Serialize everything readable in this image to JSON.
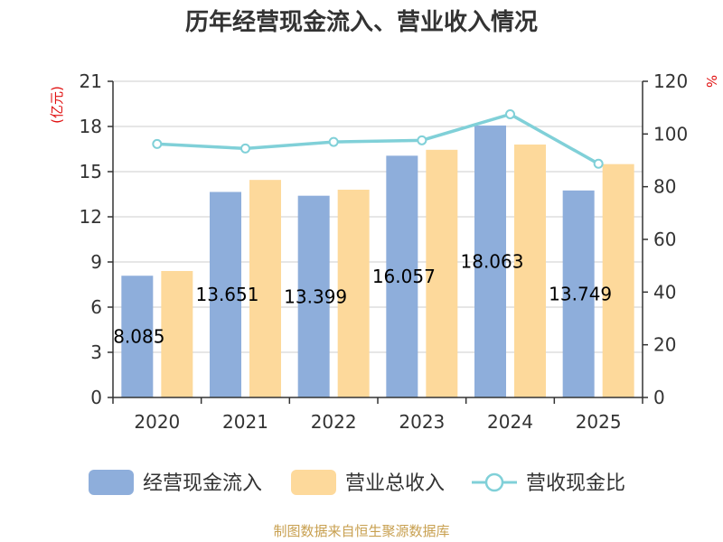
{
  "chart_data": {
    "type": "bar",
    "title": "历年经营现金流入、营业收入情况",
    "categories": [
      "2020",
      "2021",
      "2022",
      "2023",
      "2024",
      "2025"
    ],
    "series": [
      {
        "name": "经营现金流入",
        "type": "bar",
        "axis": "left",
        "color": "#8eaedb",
        "values": [
          8.085,
          13.651,
          13.399,
          16.057,
          18.063,
          13.749
        ],
        "labels": [
          "8.085",
          "13.651",
          "13.399",
          "16.057",
          "18.063",
          "13.749"
        ]
      },
      {
        "name": "营业总收入",
        "type": "bar",
        "axis": "left",
        "color": "#fdd99b",
        "values": [
          8.4,
          14.45,
          13.8,
          16.45,
          16.8,
          15.5
        ]
      },
      {
        "name": "营收现金比",
        "type": "line",
        "axis": "right",
        "color": "#80d0d8",
        "values": [
          96.2,
          94.5,
          97.0,
          97.6,
          107.5,
          88.7
        ]
      }
    ],
    "left_axis": {
      "unit": "(亿元)",
      "ylim": [
        0,
        21
      ],
      "ticks": [
        "0",
        "3",
        "6",
        "9",
        "12",
        "15",
        "18",
        "21"
      ]
    },
    "right_axis": {
      "unit": "%",
      "ylim": [
        0,
        120
      ],
      "ticks": [
        "0",
        "20",
        "40",
        "60",
        "80",
        "100",
        "120"
      ]
    },
    "grid": true,
    "legend_position": "bottom"
  },
  "source": "制图数据来自恒生聚源数据库"
}
